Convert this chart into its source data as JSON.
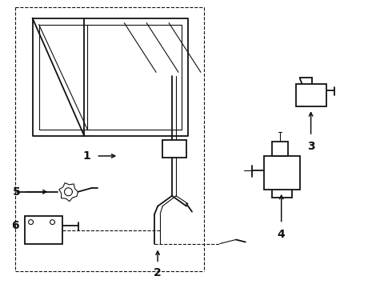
{
  "bg_color": "#ffffff",
  "line_color": "#111111",
  "figsize": [
    4.9,
    3.6
  ],
  "dpi": 100,
  "xlim": [
    0,
    490
  ],
  "ylim": [
    0,
    360
  ]
}
